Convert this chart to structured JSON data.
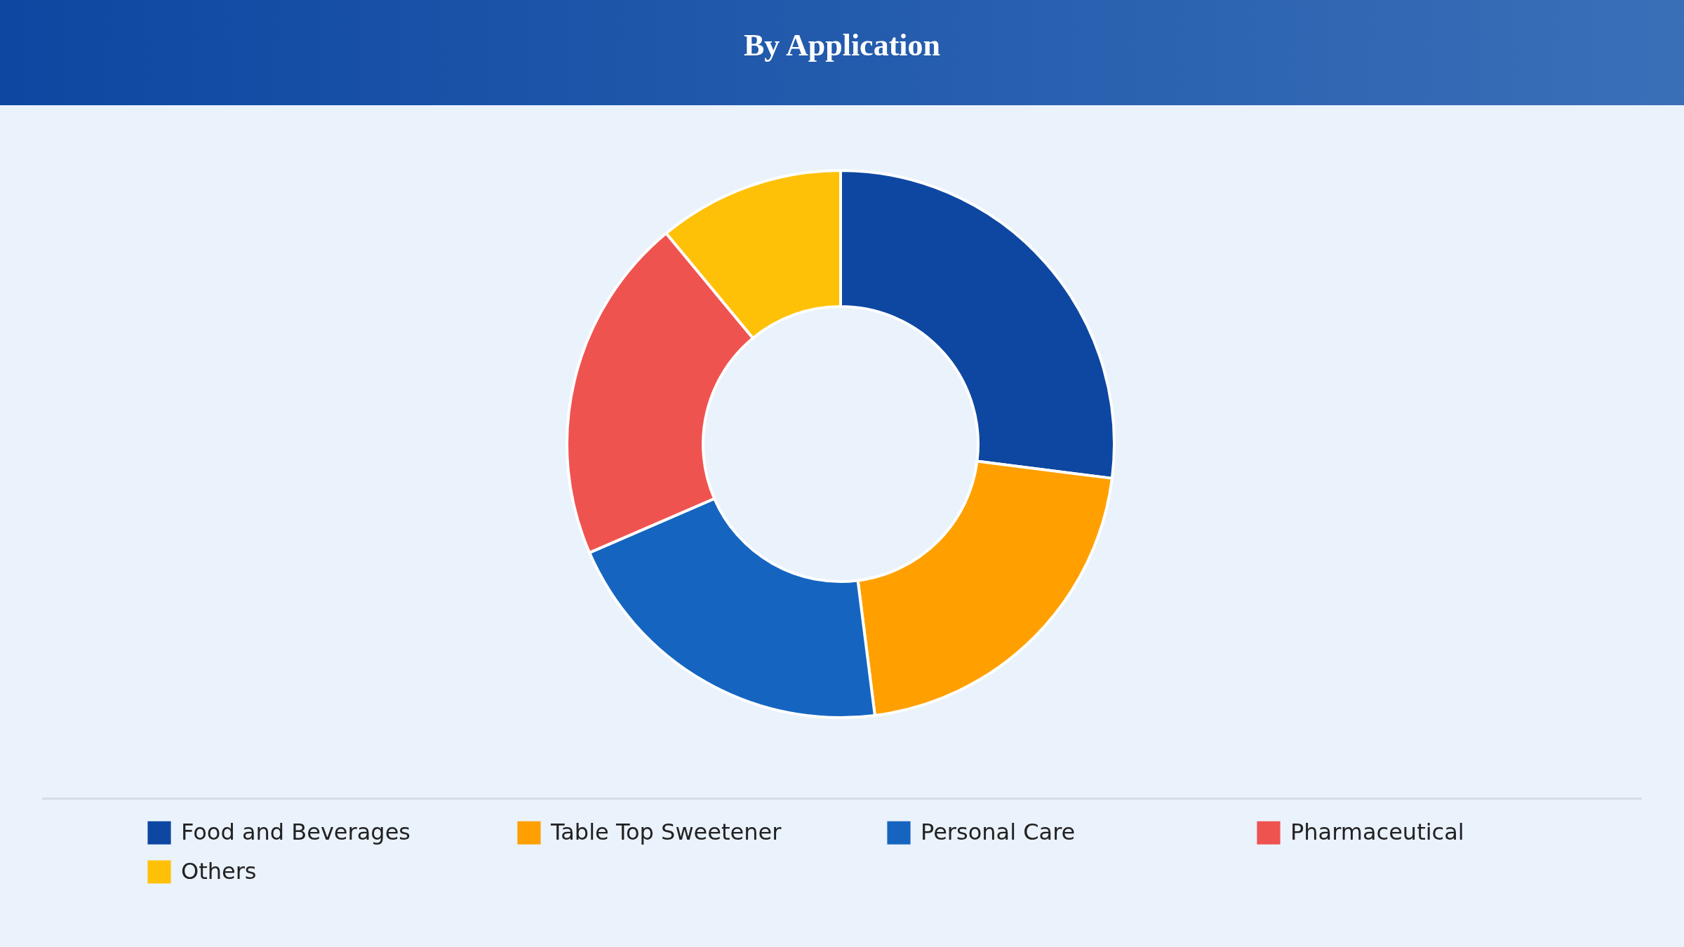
{
  "chart_data": {
    "type": "donut",
    "title": "By Application",
    "categories": [
      "Food and Beverages",
      "Table Top Sweetener",
      "Personal Care",
      "Pharmaceutical",
      "Others"
    ],
    "values": [
      27,
      21,
      20.5,
      20.5,
      11
    ],
    "colors": [
      "#0d47a1",
      "#ffa000",
      "#1565c0",
      "#ef5350",
      "#ffc107"
    ],
    "legend": "bottom"
  }
}
